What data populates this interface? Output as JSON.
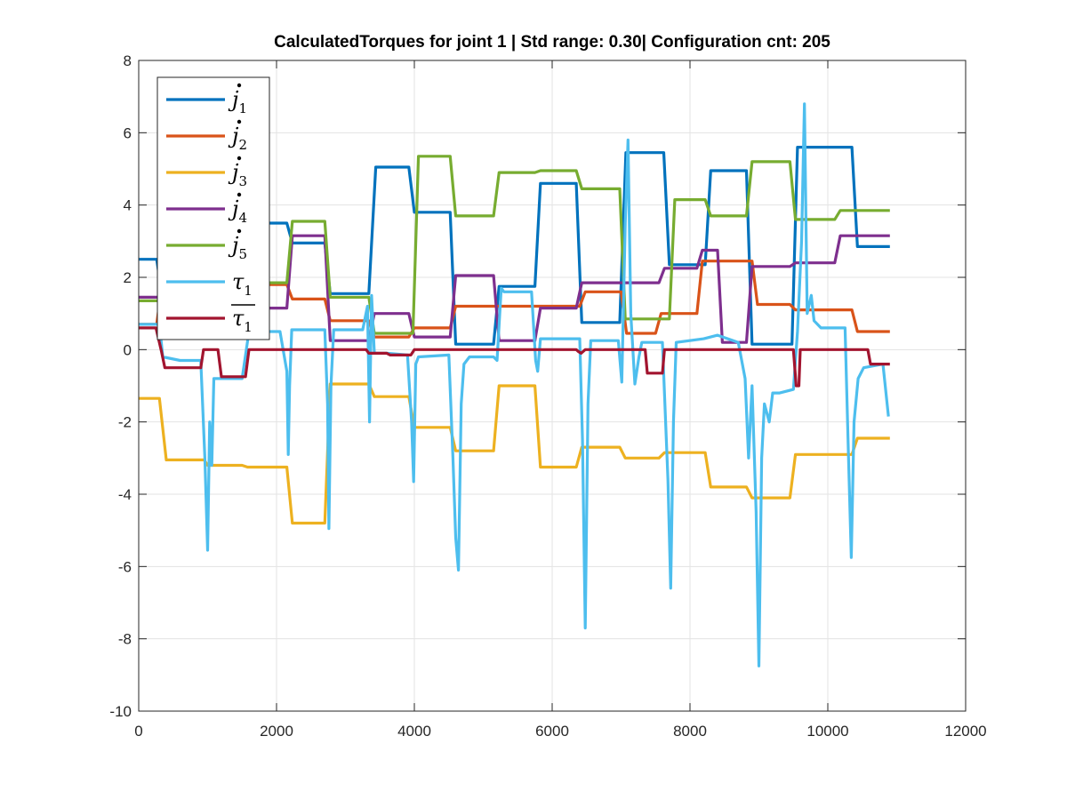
{
  "chart_data": {
    "type": "line",
    "title": "CalculatedTorques for joint 1 | Std range: 0.30| Configuration cnt: 205",
    "xlim": [
      0,
      12000
    ],
    "ylim": [
      -10,
      8
    ],
    "xticks": [
      0,
      2000,
      4000,
      6000,
      8000,
      10000,
      12000
    ],
    "xtick_labels": [
      "0",
      "2000",
      "4000",
      "6000",
      "8000",
      "10000",
      "12000"
    ],
    "yticks": [
      -10,
      -8,
      -6,
      -4,
      -2,
      0,
      2,
      4,
      6,
      8
    ],
    "ytick_labels": [
      "-10",
      "-8",
      "-6",
      "-4",
      "-2",
      "0",
      "2",
      "4",
      "6",
      "8"
    ],
    "grid": true,
    "legend_position": "top-left",
    "series": [
      {
        "name": "j̇1",
        "sym": "j",
        "sub": "1",
        "dot": true,
        "bar": false,
        "color": "#0072BD",
        "steps": [
          [
            0,
            2.5
          ],
          [
            260,
            2.5
          ],
          [
            330,
            1.6
          ],
          [
            1600,
            1.6
          ],
          [
            1700,
            3.5
          ],
          [
            2150,
            3.5
          ],
          [
            2230,
            2.95
          ],
          [
            2700,
            2.95
          ],
          [
            2780,
            1.55
          ],
          [
            3340,
            1.55
          ],
          [
            3440,
            5.05
          ],
          [
            3920,
            5.05
          ],
          [
            4000,
            3.8
          ],
          [
            4520,
            3.8
          ],
          [
            4600,
            0.15
          ],
          [
            5150,
            0.15
          ],
          [
            5230,
            1.75
          ],
          [
            5750,
            1.75
          ],
          [
            5830,
            4.6
          ],
          [
            6350,
            4.6
          ],
          [
            6430,
            0.75
          ],
          [
            6980,
            0.75
          ],
          [
            7070,
            5.45
          ],
          [
            7550,
            5.45
          ],
          [
            7620,
            5.45
          ],
          [
            7700,
            2.35
          ],
          [
            8220,
            2.35
          ],
          [
            8300,
            4.95
          ],
          [
            8820,
            4.95
          ],
          [
            8900,
            0.15
          ],
          [
            9480,
            0.15
          ],
          [
            9560,
            5.6
          ],
          [
            10350,
            5.6
          ],
          [
            10430,
            2.85
          ],
          [
            10900,
            2.85
          ]
        ]
      },
      {
        "name": "j̇2",
        "sym": "j",
        "sub": "2",
        "dot": true,
        "bar": false,
        "color": "#D95319",
        "steps": [
          [
            0,
            0.7
          ],
          [
            260,
            0.7
          ],
          [
            330,
            1.7
          ],
          [
            1600,
            1.7
          ],
          [
            1700,
            1.8
          ],
          [
            2150,
            1.8
          ],
          [
            2230,
            1.4
          ],
          [
            2700,
            1.4
          ],
          [
            2780,
            0.8
          ],
          [
            3340,
            0.8
          ],
          [
            3420,
            0.35
          ],
          [
            3920,
            0.35
          ],
          [
            4000,
            0.6
          ],
          [
            4520,
            0.6
          ],
          [
            4600,
            1.2
          ],
          [
            6400,
            1.2
          ],
          [
            6480,
            1.6
          ],
          [
            7000,
            1.6
          ],
          [
            7080,
            0.45
          ],
          [
            7500,
            0.45
          ],
          [
            7580,
            1.0
          ],
          [
            8100,
            1.0
          ],
          [
            8180,
            2.45
          ],
          [
            8900,
            2.45
          ],
          [
            8980,
            1.25
          ],
          [
            9450,
            1.25
          ],
          [
            9530,
            1.1
          ],
          [
            10350,
            1.1
          ],
          [
            10430,
            0.5
          ],
          [
            10900,
            0.5
          ]
        ]
      },
      {
        "name": "j̇3",
        "sym": "j",
        "sub": "3",
        "dot": true,
        "bar": false,
        "color": "#EDB120",
        "steps": [
          [
            0,
            -1.35
          ],
          [
            300,
            -1.35
          ],
          [
            400,
            -3.05
          ],
          [
            950,
            -3.05
          ],
          [
            1000,
            -3.2
          ],
          [
            1500,
            -3.2
          ],
          [
            1580,
            -3.25
          ],
          [
            2150,
            -3.25
          ],
          [
            2230,
            -4.8
          ],
          [
            2700,
            -4.8
          ],
          [
            2780,
            -0.95
          ],
          [
            3340,
            -0.95
          ],
          [
            3420,
            -1.3
          ],
          [
            3920,
            -1.3
          ],
          [
            4000,
            -2.15
          ],
          [
            4520,
            -2.15
          ],
          [
            4600,
            -2.8
          ],
          [
            5150,
            -2.8
          ],
          [
            5230,
            -1.0
          ],
          [
            5750,
            -1.0
          ],
          [
            5830,
            -3.25
          ],
          [
            6350,
            -3.25
          ],
          [
            6430,
            -2.7
          ],
          [
            6980,
            -2.7
          ],
          [
            7060,
            -3.0
          ],
          [
            7550,
            -3.0
          ],
          [
            7630,
            -2.85
          ],
          [
            8220,
            -2.85
          ],
          [
            8300,
            -3.8
          ],
          [
            8820,
            -3.8
          ],
          [
            8900,
            -4.1
          ],
          [
            9450,
            -4.1
          ],
          [
            9530,
            -2.9
          ],
          [
            10350,
            -2.9
          ],
          [
            10430,
            -2.45
          ],
          [
            10900,
            -2.45
          ]
        ]
      },
      {
        "name": "j̇4",
        "sym": "j",
        "sub": "4",
        "dot": true,
        "bar": false,
        "color": "#7E2F8E",
        "steps": [
          [
            0,
            1.45
          ],
          [
            300,
            1.45
          ],
          [
            380,
            1.5
          ],
          [
            1600,
            1.5
          ],
          [
            1680,
            1.15
          ],
          [
            2150,
            1.15
          ],
          [
            2230,
            3.15
          ],
          [
            2700,
            3.15
          ],
          [
            2780,
            0.25
          ],
          [
            3340,
            0.25
          ],
          [
            3420,
            1.0
          ],
          [
            3920,
            1.0
          ],
          [
            4000,
            0.35
          ],
          [
            4520,
            0.35
          ],
          [
            4600,
            2.05
          ],
          [
            5150,
            2.05
          ],
          [
            5230,
            0.25
          ],
          [
            5750,
            0.25
          ],
          [
            5830,
            1.15
          ],
          [
            6350,
            1.15
          ],
          [
            6430,
            1.85
          ],
          [
            6980,
            1.85
          ],
          [
            7060,
            1.85
          ],
          [
            7550,
            1.85
          ],
          [
            7630,
            2.25
          ],
          [
            8100,
            2.25
          ],
          [
            8180,
            2.75
          ],
          [
            8400,
            2.75
          ],
          [
            8470,
            0.2
          ],
          [
            8820,
            0.2
          ],
          [
            8900,
            2.3
          ],
          [
            9450,
            2.3
          ],
          [
            9530,
            2.4
          ],
          [
            10100,
            2.4
          ],
          [
            10180,
            3.15
          ],
          [
            10900,
            3.15
          ]
        ]
      },
      {
        "name": "j̇5",
        "sym": "j",
        "sub": "5",
        "dot": true,
        "bar": false,
        "color": "#77AC30",
        "steps": [
          [
            0,
            1.35
          ],
          [
            300,
            1.35
          ],
          [
            380,
            1.7
          ],
          [
            1600,
            1.7
          ],
          [
            1680,
            1.85
          ],
          [
            2150,
            1.85
          ],
          [
            2230,
            3.55
          ],
          [
            2700,
            3.55
          ],
          [
            2780,
            1.45
          ],
          [
            3340,
            1.45
          ],
          [
            3420,
            0.45
          ],
          [
            3980,
            0.45
          ],
          [
            4060,
            5.35
          ],
          [
            4520,
            5.35
          ],
          [
            4600,
            3.7
          ],
          [
            5150,
            3.7
          ],
          [
            5230,
            4.9
          ],
          [
            5750,
            4.9
          ],
          [
            5830,
            4.95
          ],
          [
            6350,
            4.95
          ],
          [
            6430,
            4.45
          ],
          [
            6980,
            4.45
          ],
          [
            7060,
            0.85
          ],
          [
            7700,
            0.85
          ],
          [
            7780,
            4.15
          ],
          [
            8220,
            4.15
          ],
          [
            8300,
            3.7
          ],
          [
            8820,
            3.7
          ],
          [
            8900,
            5.2
          ],
          [
            9450,
            5.2
          ],
          [
            9530,
            3.6
          ],
          [
            10100,
            3.6
          ],
          [
            10180,
            3.85
          ],
          [
            10900,
            3.85
          ]
        ]
      },
      {
        "name": "τ1",
        "sym": "τ",
        "sub": "1",
        "dot": false,
        "bar": false,
        "color": "#4DBEEE",
        "steps": [
          [
            0,
            0.7
          ],
          [
            300,
            0.7
          ],
          [
            350,
            -0.2
          ],
          [
            600,
            -0.3
          ],
          [
            900,
            -0.3
          ],
          [
            960,
            -3.0
          ],
          [
            1000,
            -5.55
          ],
          [
            1030,
            -2.0
          ],
          [
            1060,
            -3.2
          ],
          [
            1090,
            -0.8
          ],
          [
            1300,
            -0.8
          ],
          [
            1500,
            -0.8
          ],
          [
            1600,
            0.5
          ],
          [
            2050,
            0.5
          ],
          [
            2150,
            -0.6
          ],
          [
            2170,
            -2.9
          ],
          [
            2190,
            -1.0
          ],
          [
            2220,
            0.55
          ],
          [
            2700,
            0.55
          ],
          [
            2740,
            -1.5
          ],
          [
            2760,
            -4.95
          ],
          [
            2790,
            -1.0
          ],
          [
            2830,
            0.55
          ],
          [
            3250,
            0.55
          ],
          [
            3320,
            1.2
          ],
          [
            3350,
            -2.0
          ],
          [
            3380,
            1.5
          ],
          [
            3420,
            -0.1
          ],
          [
            3600,
            -0.1
          ],
          [
            3900,
            -0.15
          ],
          [
            3960,
            -2.0
          ],
          [
            3990,
            -3.65
          ],
          [
            4020,
            -0.4
          ],
          [
            4060,
            -0.2
          ],
          [
            4500,
            -0.15
          ],
          [
            4560,
            -3.0
          ],
          [
            4600,
            -5.2
          ],
          [
            4640,
            -6.1
          ],
          [
            4680,
            -1.5
          ],
          [
            4720,
            -0.4
          ],
          [
            4800,
            -0.2
          ],
          [
            5150,
            -0.2
          ],
          [
            5200,
            -0.3
          ],
          [
            5260,
            1.7
          ],
          [
            5300,
            1.6
          ],
          [
            5700,
            1.6
          ],
          [
            5760,
            -0.3
          ],
          [
            5790,
            -0.6
          ],
          [
            5830,
            0.3
          ],
          [
            6400,
            0.3
          ],
          [
            6440,
            -2.5
          ],
          [
            6480,
            -7.7
          ],
          [
            6520,
            -1.5
          ],
          [
            6560,
            0.25
          ],
          [
            6960,
            0.25
          ],
          [
            7010,
            -0.9
          ],
          [
            7060,
            3.5
          ],
          [
            7100,
            5.8
          ],
          [
            7140,
            1.0
          ],
          [
            7200,
            -0.95
          ],
          [
            7260,
            -0.2
          ],
          [
            7300,
            0.2
          ],
          [
            7600,
            0.2
          ],
          [
            7680,
            -3.6
          ],
          [
            7720,
            -6.6
          ],
          [
            7760,
            -2.0
          ],
          [
            7800,
            0.2
          ],
          [
            8200,
            0.3
          ],
          [
            8400,
            0.4
          ],
          [
            8700,
            0.2
          ],
          [
            8800,
            -0.8
          ],
          [
            8850,
            -3.0
          ],
          [
            8900,
            -1.0
          ],
          [
            8960,
            -4.5
          ],
          [
            9000,
            -8.75
          ],
          [
            9040,
            -3.0
          ],
          [
            9080,
            -1.5
          ],
          [
            9150,
            -2.0
          ],
          [
            9200,
            -1.2
          ],
          [
            9300,
            -1.2
          ],
          [
            9500,
            -1.1
          ],
          [
            9560,
            0.5
          ],
          [
            9620,
            3.0
          ],
          [
            9660,
            6.8
          ],
          [
            9700,
            1.0
          ],
          [
            9760,
            1.5
          ],
          [
            9800,
            0.8
          ],
          [
            9900,
            0.6
          ],
          [
            10250,
            0.6
          ],
          [
            10300,
            -3.0
          ],
          [
            10340,
            -5.75
          ],
          [
            10380,
            -2.0
          ],
          [
            10440,
            -0.8
          ],
          [
            10520,
            -0.5
          ],
          [
            10800,
            -0.4
          ],
          [
            10880,
            -1.85
          ]
        ]
      },
      {
        "name": "τ̄1",
        "sym": "τ",
        "sub": "1",
        "dot": false,
        "bar": true,
        "color": "#A2142F",
        "steps": [
          [
            0,
            0.6
          ],
          [
            250,
            0.6
          ],
          [
            330,
            -0.05
          ],
          [
            380,
            -0.5
          ],
          [
            900,
            -0.5
          ],
          [
            940,
            0.0
          ],
          [
            1150,
            0.0
          ],
          [
            1200,
            -0.75
          ],
          [
            1550,
            -0.75
          ],
          [
            1600,
            0.0
          ],
          [
            3300,
            0.0
          ],
          [
            3340,
            -0.1
          ],
          [
            3600,
            -0.1
          ],
          [
            3650,
            -0.15
          ],
          [
            3950,
            -0.15
          ],
          [
            4000,
            0.0
          ],
          [
            6350,
            0.0
          ],
          [
            6380,
            -0.05
          ],
          [
            6420,
            -0.1
          ],
          [
            6480,
            0.0
          ],
          [
            7350,
            0.0
          ],
          [
            7380,
            -0.65
          ],
          [
            7600,
            -0.65
          ],
          [
            7630,
            0.0
          ],
          [
            9500,
            0.0
          ],
          [
            9540,
            -1.0
          ],
          [
            9580,
            -1.0
          ],
          [
            9600,
            0.0
          ],
          [
            10580,
            0.0
          ],
          [
            10620,
            -0.4
          ],
          [
            10900,
            -0.4
          ]
        ]
      }
    ]
  }
}
